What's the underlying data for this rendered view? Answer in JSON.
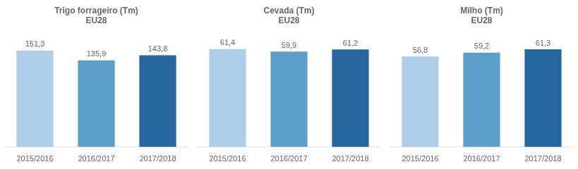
{
  "chart_data": [
    {
      "type": "bar",
      "title": "Trigo forrageiro (Tm)\nEU28",
      "categories": [
        "2015/2016",
        "2016/2017",
        "2017/2018"
      ],
      "values": [
        151.3,
        135.9,
        143.8
      ],
      "value_labels": [
        "151,3",
        "135,9",
        "143,8"
      ],
      "colors": [
        "#aecde8",
        "#5b9ec9",
        "#2565a0"
      ],
      "ylim": [
        0,
        170
      ],
      "grid": false,
      "data_labels": true,
      "tick_labels": "x"
    },
    {
      "type": "bar",
      "title": "Cevada (Tm)\nEU28",
      "categories": [
        "2015/2016",
        "2016/2017",
        "2017/2018"
      ],
      "values": [
        61.4,
        59.9,
        61.2
      ],
      "value_labels": [
        "61,4",
        "59,9",
        "61,2"
      ],
      "colors": [
        "#aecde8",
        "#5b9ec9",
        "#2565a0"
      ],
      "ylim": [
        0,
        68
      ],
      "grid": false,
      "data_labels": true,
      "tick_labels": "x"
    },
    {
      "type": "bar",
      "title": "Milho (Tm)\nEU28",
      "categories": [
        "2015/2016",
        "2016/2017",
        "2017/2018"
      ],
      "values": [
        56.8,
        59.2,
        61.3
      ],
      "value_labels": [
        "56,8",
        "59,2",
        "61,3"
      ],
      "colors": [
        "#aecde8",
        "#5b9ec9",
        "#2565a0"
      ],
      "ylim": [
        0,
        68
      ],
      "grid": false,
      "data_labels": true,
      "tick_labels": "x"
    }
  ]
}
